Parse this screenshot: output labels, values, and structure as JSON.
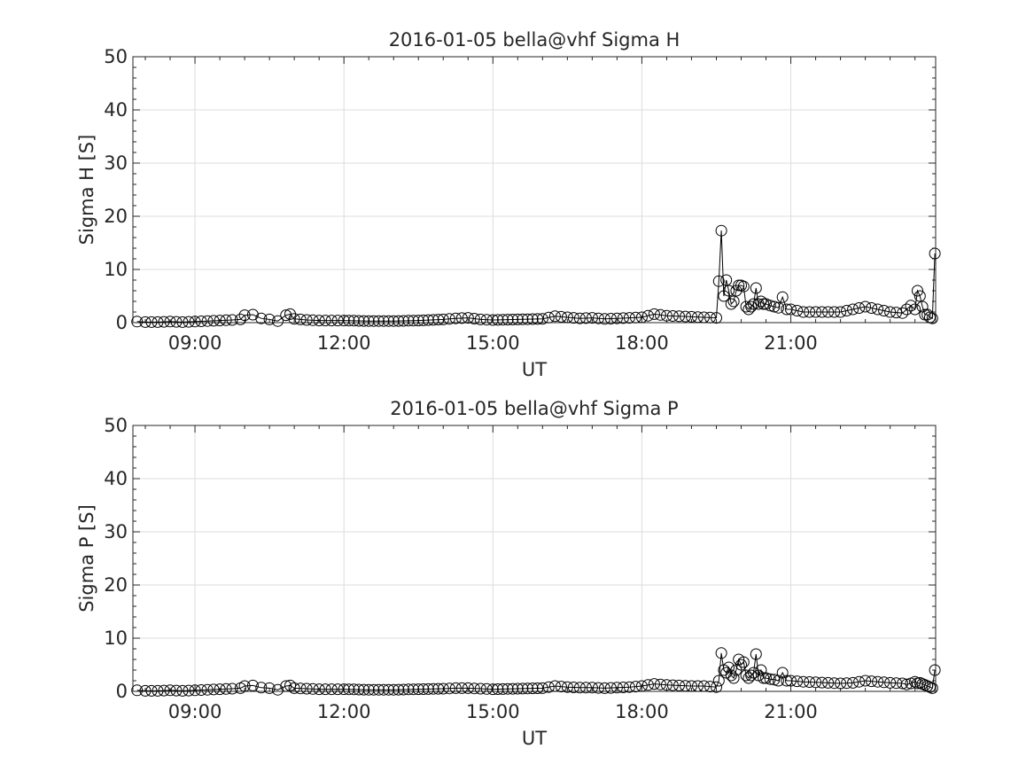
{
  "chart_data": [
    {
      "type": "scatter",
      "title": "2016-01-05  bella@vhf Sigma H",
      "xlabel": "UT",
      "ylabel": "Sigma H [S]",
      "xlim": [
        "07:45",
        "23:55"
      ],
      "ylim": [
        0,
        50
      ],
      "yticks": [
        0,
        10,
        20,
        30,
        40,
        50
      ],
      "xticks": [
        "09:00",
        "12:00",
        "15:00",
        "18:00",
        "21:00"
      ],
      "grid": true,
      "marker": "open-circle",
      "line": true,
      "series": [
        {
          "x": [
            "07:50",
            "08:00",
            "08:15",
            "08:30",
            "08:45",
            "09:00",
            "09:15",
            "09:30",
            "09:45",
            "09:55",
            "10:00",
            "10:10",
            "10:20",
            "10:30",
            "10:40",
            "10:50",
            "10:55",
            "11:00",
            "11:15",
            "11:30",
            "11:45",
            "12:00",
            "12:30",
            "13:00",
            "13:30",
            "14:00",
            "14:15",
            "14:30",
            "14:45",
            "15:00",
            "15:30",
            "16:00",
            "16:15",
            "16:30",
            "16:45",
            "17:00",
            "17:15",
            "17:30",
            "17:45",
            "18:00",
            "18:15",
            "18:30",
            "18:45",
            "19:00",
            "19:15",
            "19:30",
            "19:33",
            "19:36",
            "19:39",
            "19:42",
            "19:45",
            "19:48",
            "19:51",
            "19:54",
            "19:57",
            "20:00",
            "20:03",
            "20:06",
            "20:09",
            "20:12",
            "20:15",
            "20:18",
            "20:21",
            "20:24",
            "20:27",
            "20:30",
            "20:35",
            "20:40",
            "20:45",
            "20:50",
            "20:55",
            "21:00",
            "21:15",
            "21:30",
            "21:45",
            "22:00",
            "22:15",
            "22:30",
            "22:45",
            "23:00",
            "23:15",
            "23:20",
            "23:25",
            "23:30",
            "23:33",
            "23:36",
            "23:39",
            "23:42",
            "23:45",
            "23:48",
            "23:51",
            "23:54"
          ],
          "y": [
            0.2,
            0.1,
            0.1,
            0.2,
            0.1,
            0.2,
            0.3,
            0.4,
            0.5,
            0.6,
            1.4,
            1.5,
            0.8,
            0.6,
            0.3,
            1.4,
            1.6,
            0.7,
            0.5,
            0.4,
            0.4,
            0.4,
            0.3,
            0.3,
            0.4,
            0.6,
            0.8,
            0.9,
            0.6,
            0.5,
            0.6,
            0.7,
            1.2,
            1.0,
            0.8,
            0.9,
            0.7,
            0.8,
            0.9,
            1.0,
            1.6,
            1.3,
            1.2,
            1.1,
            1.0,
            0.9,
            7.8,
            17.3,
            5.0,
            8.0,
            6.0,
            3.5,
            4.0,
            6.0,
            7.0,
            7.0,
            6.8,
            3.0,
            2.5,
            3.0,
            3.5,
            6.5,
            3.5,
            4.0,
            3.5,
            3.5,
            3.2,
            3.0,
            2.8,
            4.8,
            2.5,
            2.5,
            2.0,
            2.0,
            2.0,
            2.0,
            2.5,
            3.0,
            2.5,
            2.0,
            1.8,
            2.5,
            3.2,
            2.5,
            6.0,
            5.0,
            3.0,
            1.5,
            1.5,
            1.0,
            0.8,
            13.0
          ]
        }
      ]
    },
    {
      "type": "scatter",
      "title": "2016-01-05  bella@vhf Sigma P",
      "xlabel": "UT",
      "ylabel": "Sigma P [S]",
      "xlim": [
        "07:45",
        "23:55"
      ],
      "ylim": [
        0,
        50
      ],
      "yticks": [
        0,
        10,
        20,
        30,
        40,
        50
      ],
      "xticks": [
        "09:00",
        "12:00",
        "15:00",
        "18:00",
        "21:00"
      ],
      "grid": true,
      "marker": "open-circle",
      "line": true,
      "series": [
        {
          "x": [
            "07:50",
            "08:00",
            "08:15",
            "08:30",
            "08:45",
            "09:00",
            "09:15",
            "09:30",
            "09:45",
            "09:55",
            "10:00",
            "10:10",
            "10:20",
            "10:30",
            "10:40",
            "10:50",
            "10:55",
            "11:00",
            "11:15",
            "11:30",
            "11:45",
            "12:00",
            "12:30",
            "13:00",
            "13:30",
            "14:00",
            "14:15",
            "14:30",
            "14:45",
            "15:00",
            "15:30",
            "16:00",
            "16:15",
            "16:30",
            "16:45",
            "17:00",
            "17:15",
            "17:30",
            "17:45",
            "18:00",
            "18:15",
            "18:30",
            "18:45",
            "19:00",
            "19:15",
            "19:30",
            "19:33",
            "19:36",
            "19:39",
            "19:42",
            "19:45",
            "19:48",
            "19:51",
            "19:54",
            "19:57",
            "20:00",
            "20:03",
            "20:06",
            "20:09",
            "20:12",
            "20:15",
            "20:18",
            "20:21",
            "20:24",
            "20:27",
            "20:30",
            "20:35",
            "20:40",
            "20:45",
            "20:50",
            "20:55",
            "21:00",
            "21:15",
            "21:30",
            "21:45",
            "22:00",
            "22:15",
            "22:30",
            "22:45",
            "23:00",
            "23:15",
            "23:20",
            "23:25",
            "23:30",
            "23:33",
            "23:36",
            "23:39",
            "23:42",
            "23:45",
            "23:48",
            "23:51",
            "23:54"
          ],
          "y": [
            0.2,
            0.1,
            0.1,
            0.2,
            0.1,
            0.2,
            0.3,
            0.4,
            0.5,
            0.6,
            1.0,
            1.1,
            0.7,
            0.6,
            0.3,
            1.0,
            1.1,
            0.6,
            0.5,
            0.4,
            0.4,
            0.4,
            0.3,
            0.3,
            0.4,
            0.5,
            0.6,
            0.6,
            0.5,
            0.4,
            0.5,
            0.6,
            1.0,
            0.8,
            0.7,
            0.7,
            0.6,
            0.7,
            0.8,
            1.0,
            1.4,
            1.2,
            1.1,
            1.0,
            1.0,
            0.8,
            2.0,
            7.2,
            4.0,
            3.5,
            4.5,
            3.0,
            2.5,
            4.0,
            6.0,
            5.0,
            5.5,
            3.0,
            2.5,
            3.0,
            3.5,
            7.0,
            3.0,
            4.0,
            2.5,
            2.5,
            2.3,
            2.2,
            2.0,
            3.5,
            2.0,
            2.0,
            1.8,
            1.7,
            1.6,
            1.5,
            1.6,
            2.0,
            1.8,
            1.6,
            1.5,
            1.3,
            1.5,
            1.8,
            1.5,
            1.6,
            1.4,
            1.2,
            1.0,
            0.8,
            0.6,
            4.0
          ]
        }
      ]
    }
  ]
}
